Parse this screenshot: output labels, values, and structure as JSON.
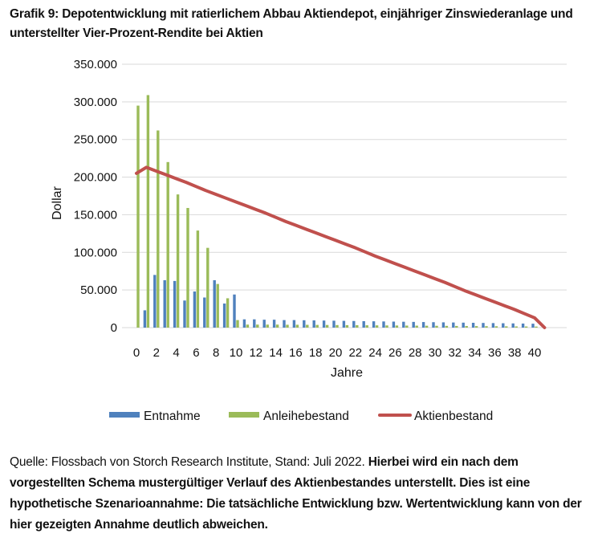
{
  "title": "Grafik 9: Depotentwicklung mit ratierlichem Abbau Aktiendepot, einjähriger Zinswiederanlage und unterstellter Vier-Prozent-Rendite bei Aktien",
  "note": {
    "source": "Quelle: Flossbach von Storch Research Institute, Stand: Juli 2022. ",
    "disclaimer": "Hierbei wird ein nach dem vorgestellten Schema mustergültiger Verlauf des Aktienbestandes unterstellt. Dies ist eine hypothetische Szenarioannahme: Die tatsächliche Entwicklung bzw. Wertentwicklung kann von der hier gezeigten Annahme deutlich abweichen."
  },
  "colors": {
    "entnahme": "#4f81bd",
    "anleihe": "#9bbb59",
    "aktien": "#c0504d",
    "grid": "#d9d9d9"
  },
  "chart_data": {
    "type": "bar",
    "title": "Grafik 9: Depotentwicklung mit ratierlichem Abbau Aktiendepot, einjähriger Zinswiederanlage und unterstellter Vier-Prozent-Rendite bei Aktien",
    "xlabel": "Jahre",
    "ylabel": "Dollar",
    "ylim": [
      0,
      350000
    ],
    "yticks": [
      "0",
      "50.000",
      "100.000",
      "150.000",
      "200.000",
      "250.000",
      "300.000",
      "350.000"
    ],
    "xticks": [
      "0",
      "2",
      "4",
      "6",
      "8",
      "10",
      "12",
      "14",
      "16",
      "18",
      "20",
      "22",
      "24",
      "26",
      "28",
      "30",
      "32",
      "34",
      "36",
      "38",
      "40"
    ],
    "x": [
      0,
      1,
      2,
      3,
      4,
      5,
      6,
      7,
      8,
      9,
      10,
      11,
      12,
      13,
      14,
      15,
      16,
      17,
      18,
      19,
      20,
      21,
      22,
      23,
      24,
      25,
      26,
      27,
      28,
      29,
      30,
      31,
      32,
      33,
      34,
      35,
      36,
      37,
      38,
      39,
      40,
      41
    ],
    "grid": true,
    "legend_position": "bottom",
    "series": [
      {
        "name": "Entnahme",
        "type": "bar",
        "values": [
          0,
          23000,
          70000,
          63000,
          62000,
          36000,
          48000,
          40000,
          63000,
          32000,
          44000,
          11000,
          11000,
          10500,
          10500,
          10000,
          10000,
          9800,
          9600,
          9400,
          9200,
          9000,
          8800,
          8600,
          8400,
          8200,
          8000,
          7800,
          7600,
          7400,
          7200,
          7000,
          6800,
          6600,
          6400,
          6200,
          6000,
          5800,
          5600,
          5400,
          5200,
          0
        ]
      },
      {
        "name": "Anleihebestand",
        "type": "bar",
        "values": [
          295000,
          309000,
          262000,
          220000,
          177000,
          159000,
          129000,
          106000,
          58000,
          39000,
          10000,
          4000,
          4000,
          4000,
          4000,
          3800,
          3800,
          3700,
          3600,
          3500,
          3400,
          3300,
          3200,
          3100,
          3000,
          2900,
          2800,
          2700,
          2600,
          2500,
          2400,
          2300,
          2200,
          2100,
          2000,
          1900,
          1800,
          1700,
          1600,
          1500,
          1400,
          0
        ]
      },
      {
        "name": "Aktienbestand",
        "type": "line",
        "values": [
          205000,
          213000,
          208000,
          203000,
          198000,
          193000,
          187500,
          182000,
          177000,
          172000,
          167000,
          162000,
          157000,
          152000,
          146500,
          141000,
          136000,
          131000,
          126000,
          121000,
          116000,
          111000,
          106000,
          100500,
          95000,
          90000,
          85000,
          80000,
          75000,
          70000,
          65000,
          60000,
          54500,
          49000,
          44000,
          39000,
          34000,
          29000,
          24000,
          18500,
          13000,
          0
        ]
      }
    ]
  },
  "legend": [
    {
      "label": "Entnahme",
      "kind": "bar"
    },
    {
      "label": "Anleihebestand",
      "kind": "bar"
    },
    {
      "label": "Aktienbestand",
      "kind": "line"
    }
  ]
}
